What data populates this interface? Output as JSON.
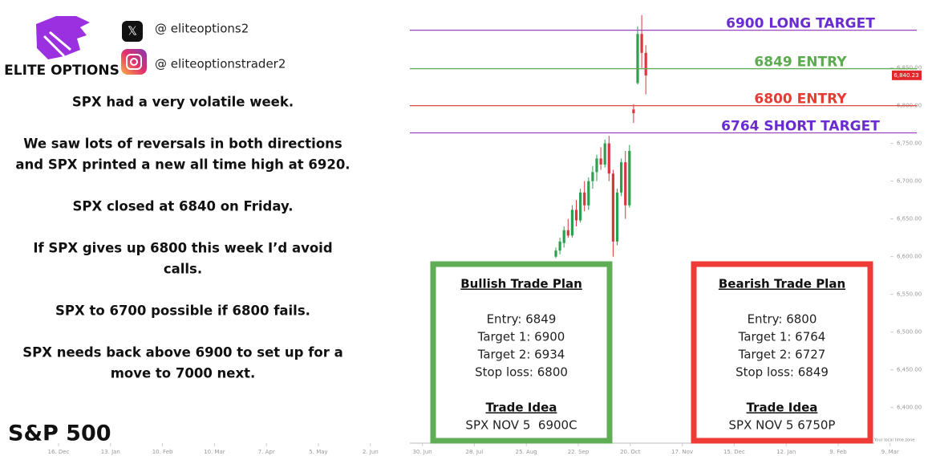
{
  "header": {
    "brand": "ELITE OPTIONS",
    "x_handle": "@ eliteoptions2",
    "instagram_handle": "@ eliteoptionstrader2"
  },
  "commentary": [
    [
      "SPX had a very volatile week."
    ],
    [
      "We saw lots of reversals in both directions",
      "and SPX printed a new all time high at 6920."
    ],
    [
      "SPX closed at 6840 on Friday."
    ],
    [
      "If SPX gives up 6800 this week I’d avoid",
      "calls."
    ],
    [
      "SPX to 6700 possible if 6800 fails."
    ],
    [
      "SPX needs back above 6900 to set up for a",
      "move to 7000 next."
    ]
  ],
  "index_name": "S&P 500",
  "chart": {
    "ylim": [
      6355,
      6940
    ],
    "yticks": [
      {
        "value": 6850,
        "label": "6,850.00"
      },
      {
        "value": 6800,
        "label": "6,800.00"
      },
      {
        "value": 6750,
        "label": "6,750.00"
      },
      {
        "value": 6700,
        "label": "6,700.00"
      },
      {
        "value": 6650,
        "label": "6,650.00"
      },
      {
        "value": 6600,
        "label": "6,600.00"
      },
      {
        "value": 6550,
        "label": "6,550.00"
      },
      {
        "value": 6500,
        "label": "6,500.00"
      },
      {
        "value": 6450,
        "label": "6,450.00"
      },
      {
        "value": 6400,
        "label": "6,400.00"
      }
    ],
    "xticks": [
      "16. Dec",
      "13. Jan",
      "10. Feb",
      "10. Mar",
      "7. Apr",
      "5. May",
      "2. Jun",
      "30. Jun",
      "28. Jul",
      "25. Aug",
      "22. Sep",
      "20. Oct",
      "17. Nov",
      "15. Dec",
      "12. Jan",
      "9. Feb",
      "9. Mar"
    ],
    "last_price": {
      "value": 6840.23,
      "label": "6,840.23"
    },
    "timezone_note": "Your local time zone",
    "levels": [
      {
        "value": 6900,
        "label": "6900 LONG TARGET",
        "color": "#6a2bd0",
        "line_color": "#9b44c2"
      },
      {
        "value": 6849,
        "label": "6849 ENTRY",
        "color": "#5cab4f",
        "line_color": "#5fae55"
      },
      {
        "value": 6800,
        "label": "6800 ENTRY",
        "color": "#e53b35",
        "line_color": "#e04545"
      },
      {
        "value": 6764,
        "label": "6764 SHORT TARGET",
        "color": "#6a2bd0",
        "line_color": "#9b44c2"
      }
    ],
    "up_color": "#2e9e4f",
    "down_color": "#d9363e",
    "candles": [
      {
        "o": 6600,
        "h": 6612,
        "l": 6598,
        "c": 6608
      },
      {
        "o": 6608,
        "h": 6625,
        "l": 6603,
        "c": 6620
      },
      {
        "o": 6618,
        "h": 6640,
        "l": 6612,
        "c": 6635
      },
      {
        "o": 6635,
        "h": 6650,
        "l": 6625,
        "c": 6628
      },
      {
        "o": 6628,
        "h": 6668,
        "l": 6625,
        "c": 6662
      },
      {
        "o": 6662,
        "h": 6675,
        "l": 6640,
        "c": 6648
      },
      {
        "o": 6648,
        "h": 6690,
        "l": 6645,
        "c": 6685
      },
      {
        "o": 6685,
        "h": 6700,
        "l": 6660,
        "c": 6668
      },
      {
        "o": 6668,
        "h": 6705,
        "l": 6662,
        "c": 6700
      },
      {
        "o": 6700,
        "h": 6720,
        "l": 6690,
        "c": 6712
      },
      {
        "o": 6712,
        "h": 6735,
        "l": 6700,
        "c": 6730
      },
      {
        "o": 6730,
        "h": 6745,
        "l": 6715,
        "c": 6722
      },
      {
        "o": 6722,
        "h": 6755,
        "l": 6718,
        "c": 6750
      },
      {
        "o": 6750,
        "h": 6760,
        "l": 6700,
        "c": 6710
      },
      {
        "o": 6710,
        "h": 6715,
        "l": 6600,
        "c": 6620
      },
      {
        "o": 6620,
        "h": 6690,
        "l": 6615,
        "c": 6685
      },
      {
        "o": 6685,
        "h": 6730,
        "l": 6680,
        "c": 6725
      },
      {
        "o": 6725,
        "h": 6740,
        "l": 6650,
        "c": 6668
      },
      {
        "o": 6668,
        "h": 6748,
        "l": 6665,
        "c": 6740
      },
      {
        "o": 6795,
        "h": 6802,
        "l": 6777,
        "c": 6790
      },
      {
        "o": 6830,
        "h": 6905,
        "l": 6828,
        "c": 6895
      },
      {
        "o": 6895,
        "h": 6920,
        "l": 6850,
        "c": 6870
      },
      {
        "o": 6870,
        "h": 6880,
        "l": 6815,
        "c": 6840
      }
    ]
  },
  "plans": [
    {
      "title": "Bullish Trade Plan",
      "lines": [
        "Entry: 6849",
        "Target 1: 6900",
        "Target 2: 6934",
        "Stop loss: 6800"
      ],
      "idea_title": "Trade Idea",
      "idea": "SPX NOV 5  6900C",
      "color": "#5fae55"
    },
    {
      "title": "Bearish Trade Plan",
      "lines": [
        "Entry: 6800",
        "Target 1: 6764",
        "Target 2: 6727",
        "Stop loss: 6849"
      ],
      "idea_title": "Trade Idea",
      "idea": "SPX NOV 5 6750P",
      "color": "#ef3b36"
    }
  ]
}
